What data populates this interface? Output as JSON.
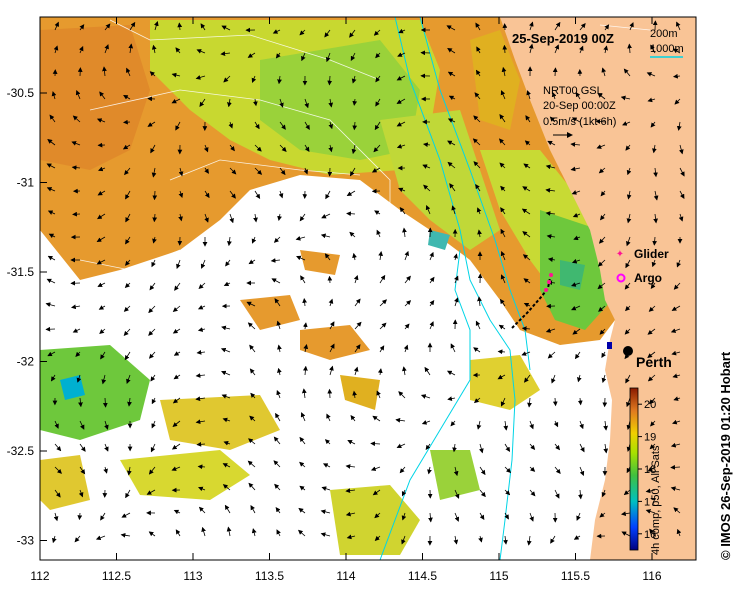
{
  "title": "25-Sep-2019 00Z",
  "contours": {
    "c200": "200m",
    "c1000": "1000m"
  },
  "velocity": {
    "source": "NRT00 GSL",
    "date": "20-Sep 00:00Z",
    "scale": "0.5m/s (1kt 6h)"
  },
  "legend": {
    "glider": "Glider",
    "argo": "Argo",
    "city": "Perth"
  },
  "colorbar": {
    "label": "4h comp, p50, All Sats",
    "ticks": [
      "16",
      "17",
      "18",
      "19",
      "20"
    ],
    "min": 15.5,
    "max": 20.5
  },
  "credit": "© IMOS 26-Sep-2019 01:20 Hobart",
  "axes": {
    "x_ticks": [
      "112",
      "112.5",
      "113",
      "113.5",
      "114",
      "114.5",
      "115",
      "115.5",
      "116"
    ],
    "y_ticks": [
      "-30.5",
      "-31",
      "-31.5",
      "-32",
      "-32.5",
      "-33"
    ]
  },
  "colors": {
    "land": "#f9c496",
    "contour": "#00d4e6",
    "glider": "#ff1493",
    "argo": "#ff00ff"
  }
}
